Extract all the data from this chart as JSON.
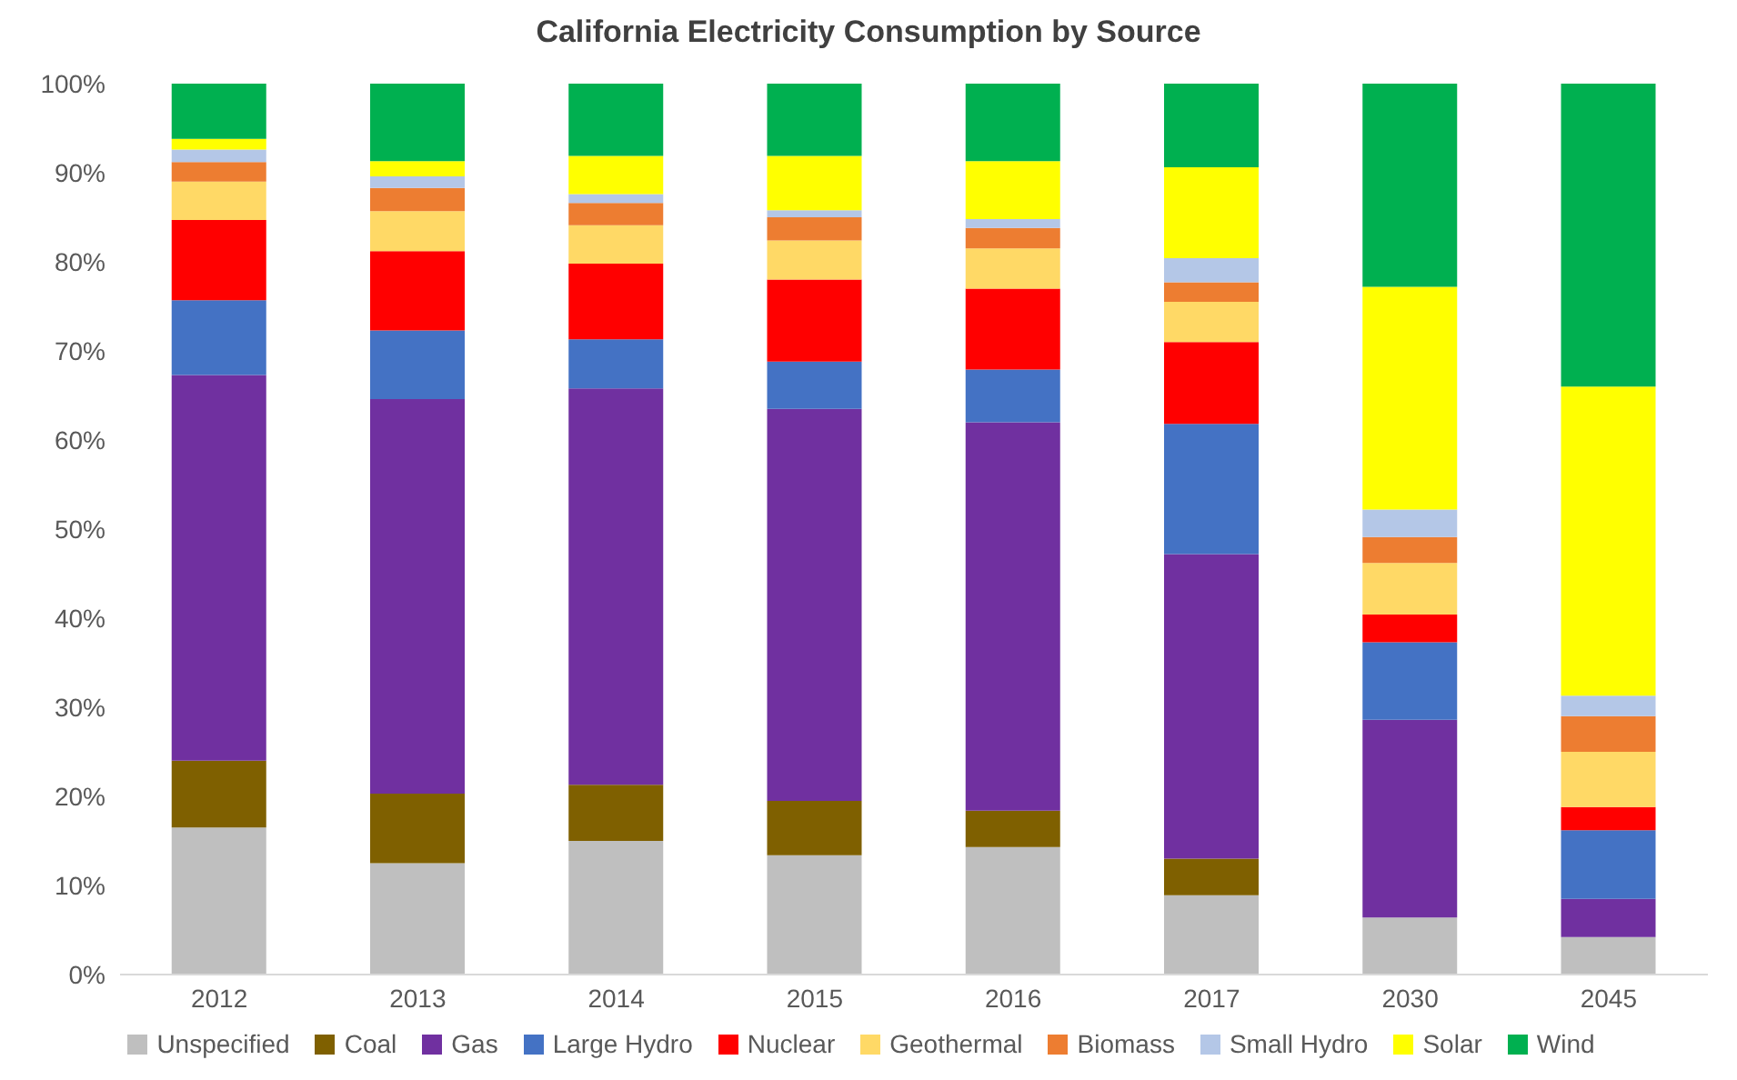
{
  "chart_data": {
    "type": "bar",
    "title": "California Electricity Consumption by Source",
    "stacked": true,
    "legend": "bottom",
    "grid": false,
    "categories": [
      "2012",
      "2013",
      "2014",
      "2015",
      "2016",
      "2017",
      "2030",
      "2045"
    ],
    "ylim": [
      0,
      100
    ],
    "yticks": [
      {
        "value": 0,
        "label": "0%"
      },
      {
        "value": 10,
        "label": "10%"
      },
      {
        "value": 20,
        "label": "20%"
      },
      {
        "value": 30,
        "label": "30%"
      },
      {
        "value": 40,
        "label": "40%"
      },
      {
        "value": 50,
        "label": "50%"
      },
      {
        "value": 60,
        "label": "60%"
      },
      {
        "value": 70,
        "label": "70%"
      },
      {
        "value": 80,
        "label": "80%"
      },
      {
        "value": 90,
        "label": "90%"
      },
      {
        "value": 100,
        "label": "100%"
      }
    ],
    "series": [
      {
        "name": "Unspecified",
        "color": "#bfbfbf",
        "values": [
          16.5,
          12.5,
          15,
          13.4,
          14.3,
          8.9,
          6.4,
          4.2
        ]
      },
      {
        "name": "Coal",
        "color": "#7f6000",
        "values": [
          7.5,
          7.8,
          6.3,
          6.1,
          4.1,
          4.1,
          0,
          0
        ]
      },
      {
        "name": "Gas",
        "color": "#7030a0",
        "values": [
          43.3,
          44.3,
          44.5,
          44,
          43.6,
          34.2,
          22.2,
          4.3
        ]
      },
      {
        "name": "Large Hydro",
        "color": "#4472c4",
        "values": [
          8.4,
          7.7,
          5.5,
          5.3,
          5.9,
          14.6,
          8.7,
          7.7
        ]
      },
      {
        "name": "Nuclear",
        "color": "#ff0000",
        "values": [
          9,
          8.9,
          8.5,
          9.2,
          9.1,
          9.2,
          3.1,
          2.6
        ]
      },
      {
        "name": "Geothermal",
        "color": "#ffd966",
        "values": [
          4.3,
          4.5,
          4.3,
          4.4,
          4.5,
          4.5,
          5.8,
          6.2
        ]
      },
      {
        "name": "Biomass",
        "color": "#ed7d31",
        "values": [
          2.2,
          2.6,
          2.5,
          2.6,
          2.3,
          2.2,
          2.9,
          4
        ]
      },
      {
        "name": "Small Hydro",
        "color": "#b4c7e7",
        "values": [
          1.4,
          1.3,
          1,
          0.8,
          1,
          2.7,
          3.1,
          2.3
        ]
      },
      {
        "name": "Solar",
        "color": "#ffff00",
        "values": [
          1.2,
          1.7,
          4.3,
          6.1,
          6.5,
          10.2,
          25,
          34.7
        ]
      },
      {
        "name": "Wind",
        "color": "#00b050",
        "values": [
          6.2,
          8.7,
          8.1,
          8.1,
          8.7,
          9.4,
          22.8,
          34
        ]
      }
    ]
  }
}
